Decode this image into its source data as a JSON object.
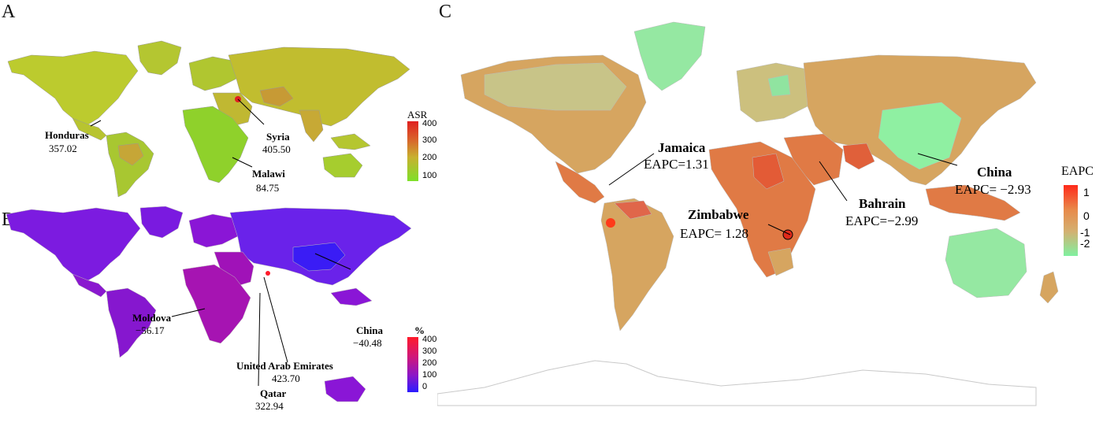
{
  "panels": {
    "A": {
      "label": "A",
      "legend": {
        "title": "ASR",
        "ticks": [
          "400",
          "300",
          "200",
          "100"
        ]
      },
      "annotations": [
        {
          "name": "Honduras",
          "value": "357.02"
        },
        {
          "name": "Syria",
          "value": "405.50"
        },
        {
          "name": "Malawi",
          "value": "84.75"
        }
      ]
    },
    "B": {
      "label": "B",
      "legend": {
        "title": "%",
        "ticks": [
          "400",
          "300",
          "200",
          "100",
          "0"
        ]
      },
      "annotations": [
        {
          "name": "Moldova",
          "value": "−56.17"
        },
        {
          "name": "China",
          "value": "−40.48"
        },
        {
          "name": "United Arab Emirates",
          "value": "423.70"
        },
        {
          "name": "Qatar",
          "value": "322.94"
        }
      ]
    },
    "C": {
      "label": "C",
      "legend": {
        "title": "EAPC",
        "ticks": [
          "1",
          "0",
          "-1",
          "-2"
        ]
      },
      "annotations": [
        {
          "name": "Jamaica",
          "value": "EAPC=1.31"
        },
        {
          "name": "China",
          "value": "EAPC= −2.93"
        },
        {
          "name": "Bahrain",
          "value": "EAPC=−2.99"
        },
        {
          "name": "Zimbabwe",
          "value": "EAPC= 1.28"
        }
      ]
    }
  },
  "colors": {
    "A_low": "#7ee02a",
    "A_mid": "#c9b02f",
    "A_high": "#e02020",
    "B_low": "#2b1bff",
    "B_mid": "#8a16c9",
    "B_high": "#ff1a2a",
    "C_low": "#80f0a0",
    "C_mid": "#d4a35a",
    "C_high": "#ff2a1a"
  }
}
